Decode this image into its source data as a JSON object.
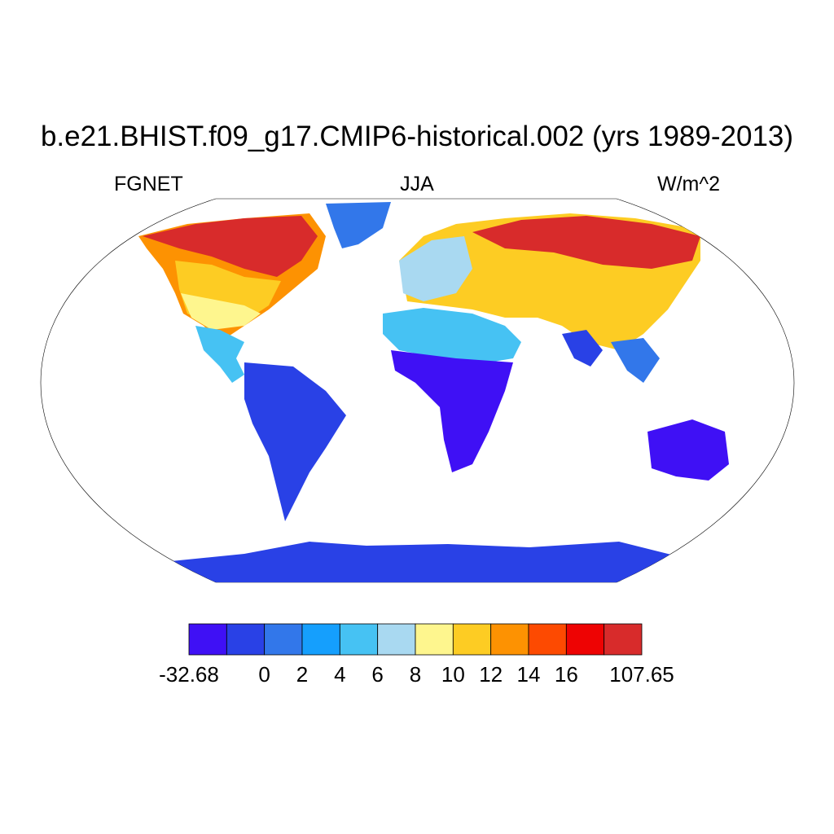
{
  "title": "b.e21.BHIST.f09_g17.CMIP6-historical.002 (yrs 1989-2013)",
  "left_string": "FGNET",
  "center_string": "JJA",
  "right_string": "W/m^2",
  "colorbar": {
    "colors": [
      "#3f10f5",
      "#2941e6",
      "#3277ea",
      "#159ffd",
      "#46c2f3",
      "#a9d9f1",
      "#fef68e",
      "#fdcc23",
      "#fd9202",
      "#fd4a01",
      "#ee0303",
      "#d82b2b"
    ],
    "labels": [
      "-32.68",
      "0",
      "2",
      "4",
      "6",
      "8",
      "10",
      "12",
      "14",
      "16",
      "107.65"
    ]
  }
}
